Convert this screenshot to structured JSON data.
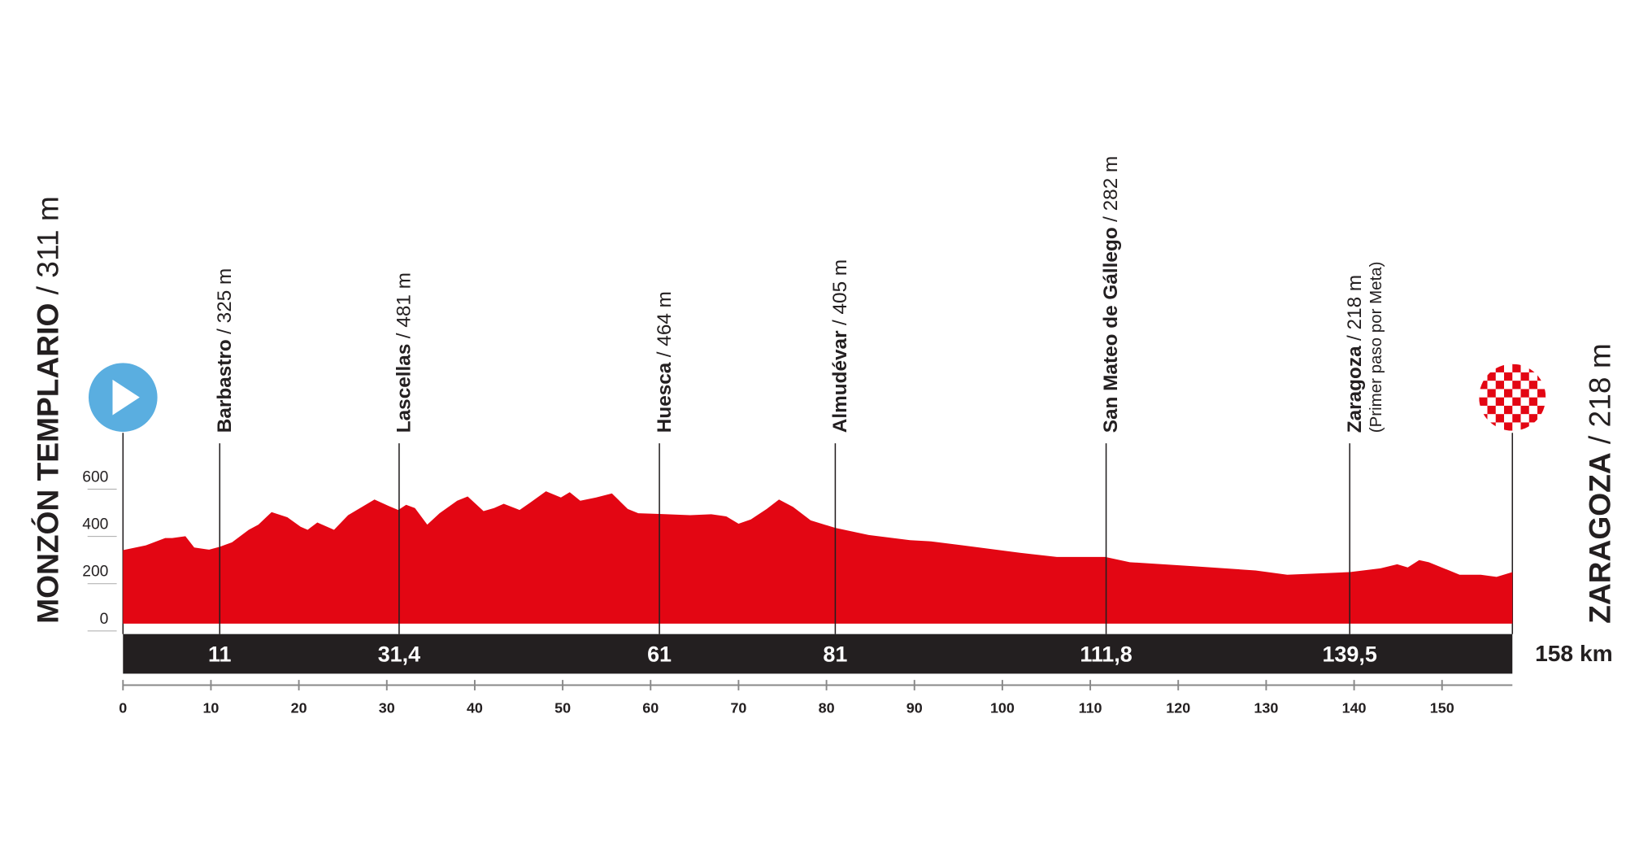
{
  "chart_data": {
    "type": "area",
    "color": "#e30613",
    "x": [
      0,
      2.6,
      4.8,
      5.6,
      7.1,
      8.1,
      9.8,
      11,
      12.4,
      14.3,
      15.4,
      16.9,
      18.7,
      20.2,
      21,
      22.1,
      24,
      25.6,
      28.6,
      30.2,
      31.3,
      32.2,
      33.2,
      34.6,
      36,
      38,
      39.2,
      41,
      42.2,
      43.3,
      45.1,
      46.3,
      48.1,
      49.8,
      50.8,
      52,
      53.8,
      55.6,
      57.4,
      58.6,
      61,
      64.5,
      66.9,
      68.6,
      70,
      71.4,
      73.2,
      74.6,
      76.2,
      78.2,
      81,
      84.8,
      89.5,
      91.9,
      95.5,
      102,
      106.2,
      111.7,
      114.5,
      121.7,
      128.8,
      132.4,
      139.5,
      143,
      144.9,
      146.1,
      147.4,
      148.5,
      152,
      154.4,
      156.2,
      158
    ],
    "values": [
      311,
      331,
      362,
      362,
      370,
      322,
      313,
      325,
      344,
      397,
      419,
      472,
      450,
      410,
      397,
      428,
      397,
      459,
      525,
      498,
      481,
      503,
      489,
      419,
      467,
      520,
      538,
      476,
      489,
      507,
      481,
      512,
      560,
      534,
      556,
      520,
      534,
      551,
      485,
      467,
      464,
      459,
      463,
      454,
      423,
      441,
      485,
      525,
      494,
      437,
      405,
      375,
      353,
      348,
      331,
      300,
      282,
      282,
      260,
      243,
      225,
      207,
      218,
      234,
      251,
      238,
      269,
      260,
      207,
      207,
      198,
      218
    ],
    "xlim": [
      0,
      158
    ],
    "ylim": [
      0,
      600
    ],
    "xticks": [
      0,
      10,
      20,
      30,
      40,
      50,
      60,
      70,
      80,
      90,
      100,
      110,
      120,
      130,
      140,
      150
    ],
    "yticks": [
      0,
      200,
      400,
      600
    ],
    "start": {
      "name": "MONZÓN TEMPLARIO",
      "altitude": "/ 311 m"
    },
    "finish": {
      "name": "ZARAGOZA",
      "altitude": "/ 218 m"
    },
    "distance_label": "158 km",
    "waypoints": [
      {
        "name": "Barbastro",
        "altitude": "/ 325 m",
        "km": 11
      },
      {
        "name": "Lascellas",
        "altitude": "/ 481 m",
        "km": {
          "value": 31.4,
          "label": "31,4"
        }
      },
      {
        "name": "Huesca",
        "altitude": "/ 464 m",
        "km": 61
      },
      {
        "name": "Almudévar",
        "altitude": "/ 405 m",
        "km": 81
      },
      {
        "name": "San Mateo de Gállego",
        "altitude": "/ 282 m",
        "km": {
          "value": 111.8,
          "label": "111,8"
        }
      },
      {
        "name": "Zaragoza",
        "altitude": "/ 218 m",
        "km": {
          "value": 139.5,
          "label": "139,5"
        },
        "note": "(Primer paso por Meta)"
      }
    ]
  }
}
